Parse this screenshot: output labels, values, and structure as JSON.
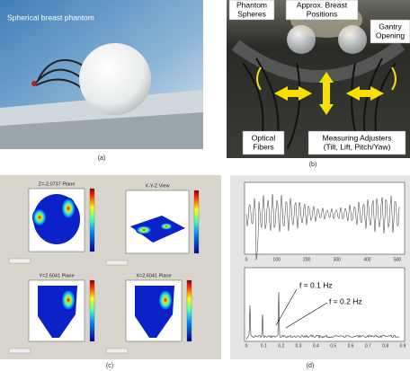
{
  "panel_a": {
    "annotation": "Spherical breast phantom",
    "caption": "(a)"
  },
  "panel_b": {
    "labels": [
      [
        "Phantom",
        "Spheres"
      ],
      [
        "Approx. Breast",
        "Positions"
      ],
      [
        "Gantry",
        "Opening"
      ],
      [
        "Optical",
        "Fibers"
      ],
      [
        "Measuring Adjusters",
        "(Tilt, Lift, Pitch/Yaw)"
      ]
    ],
    "caption": "(b)"
  },
  "panel_c": {
    "titles": [
      "Z=-2.0737  Plane",
      "X-Y-Z View",
      "Y=2.6041  Plane",
      "X=2.6041  Plane"
    ],
    "caption": "(c)"
  },
  "panel_d": {
    "annotations": [
      "f = 0.1 Hz",
      "f = 0.2 Hz"
    ],
    "top_xticks": [
      "0",
      "100",
      "200",
      "300",
      "400",
      "500"
    ],
    "bottom_xticks": [
      "0",
      "0.1",
      "0.2",
      "0.3",
      "0.4",
      "0.5",
      "0.6",
      "0.7",
      "0.8",
      "0.9"
    ],
    "caption": "(d)"
  }
}
